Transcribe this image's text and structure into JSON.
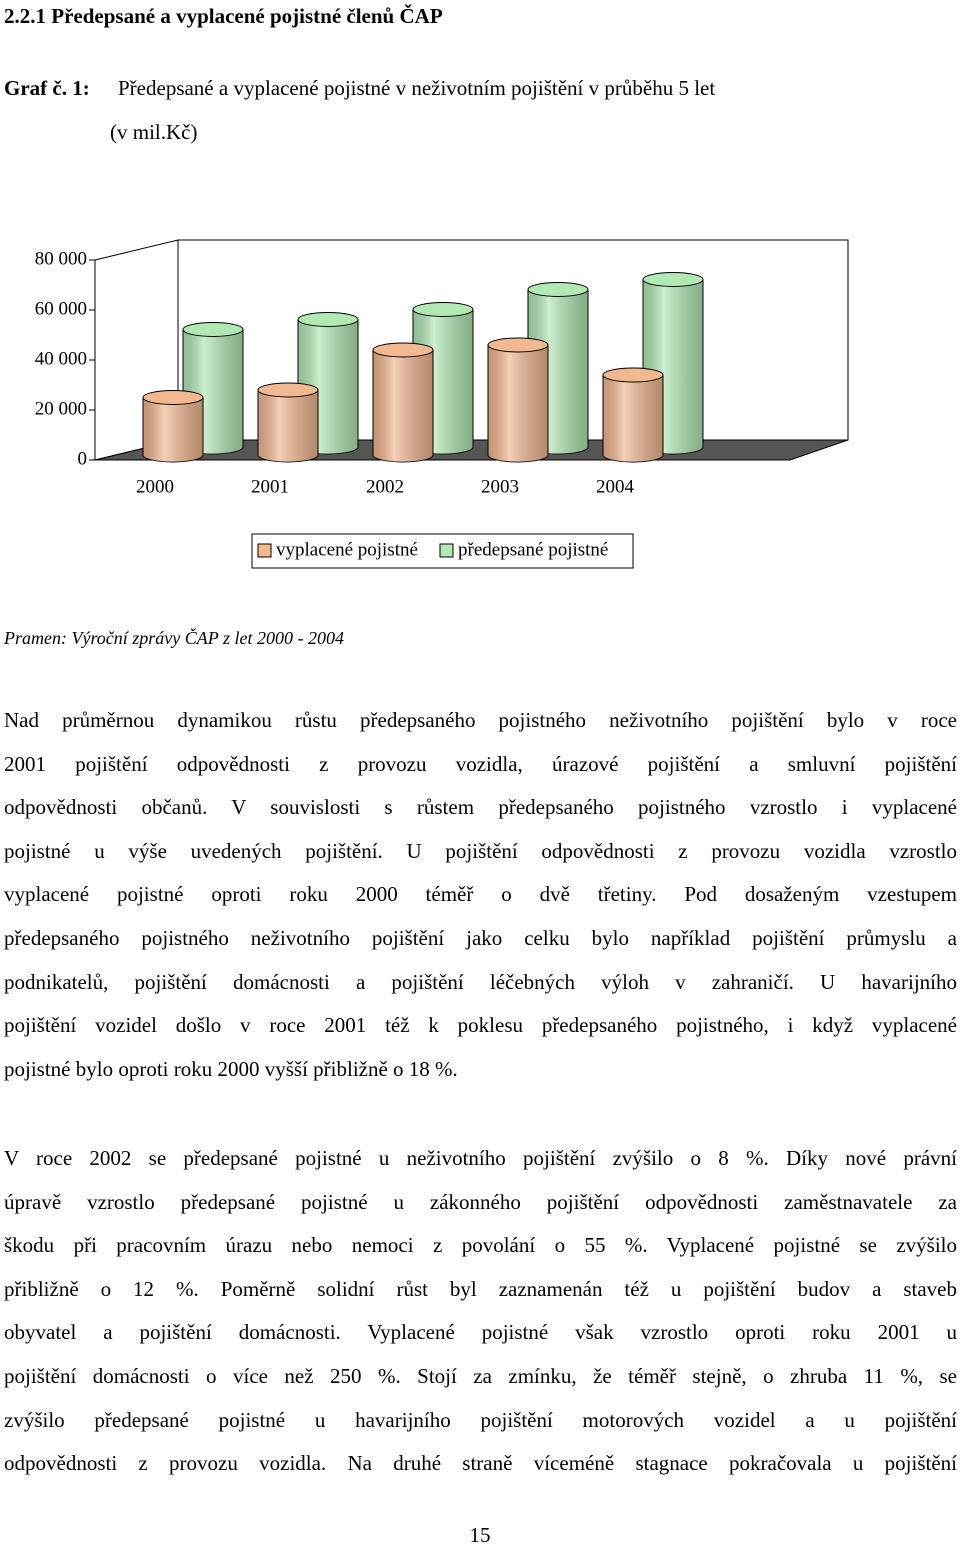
{
  "heading": "2.2.1 Předepsané a vyplacené pojistné členů ČAP",
  "caption": {
    "label": "Graf č. 1:",
    "text": "Předepsané a vyplacené pojistné v neživotním pojištění v průběhu 5 let",
    "unit": "(v mil.Kč)"
  },
  "chart_data": {
    "type": "bar3d",
    "categories": [
      "2000",
      "2001",
      "2002",
      "2003",
      "2004"
    ],
    "series": [
      {
        "name": "vyplacené pojistné",
        "color": "#f2b88f",
        "values": [
          23000,
          26000,
          42000,
          44000,
          32000
        ]
      },
      {
        "name": "předepsané pojistné",
        "color": "#b2e8b4",
        "values": [
          47000,
          51000,
          55000,
          63000,
          67000
        ]
      }
    ],
    "ylim": [
      0,
      80000
    ],
    "yticks": [
      0,
      {
        "value": 20000,
        "label": "20 000"
      },
      {
        "value": 40000,
        "label": "40 000"
      },
      {
        "value": 60000,
        "label": "60 000"
      },
      {
        "value": 80000,
        "label": "80 000"
      }
    ],
    "grid": false,
    "legend": "bottom"
  },
  "source": "Pramen: Výroční zprávy ČAP z let 2000 - 2004",
  "paragraphs": [
    {
      "lines": [
        "Nad průměrnou dynamikou růstu předepsaného pojistného neživotního pojištění bylo v roce",
        "2001 pojištění odpovědnosti z provozu vozidla, úrazové pojištění a smluvní pojištění",
        "odpovědnosti občanů. V souvislosti s růstem předepsaného pojistného vzrostlo i vyplacené",
        "pojistné u výše uvedených pojištění. U pojištění odpovědnosti z provozu vozidla vzrostlo",
        "vyplacené pojistné oproti roku 2000 téměř o dvě třetiny. Pod dosaženým vzestupem",
        "předepsaného pojistného neživotního pojištění jako celku bylo například pojištění průmyslu a",
        "podnikatelů, pojištění domácnosti a pojištění léčebných výloh v zahraničí. U havarijního",
        "pojištění vozidel došlo v roce 2001 též k poklesu předepsaného pojistného, i když vyplacené",
        "pojistné  bylo oproti roku 2000 vyšší přibližně o 18 %."
      ]
    },
    {
      "lines": [
        "V roce 2002 se předepsané pojistné u neživotního pojištění zvýšilo o 8 %. Díky nové právní",
        "úpravě vzrostlo předepsané pojistné u zákonného pojištění odpovědnosti zaměstnavatele za",
        "škodu při pracovním úrazu nebo nemoci z povolání o 55 %. Vyplacené pojistné se zvýšilo",
        "přibližně o 12 %. Poměrně solidní růst byl zaznamenán též u pojištění budov a staveb",
        "obyvatel a pojištění domácnosti. Vyplacené pojistné však vzrostlo oproti roku 2001 u",
        "pojištění domácnosti o více než 250 %. Stojí za zmínku, že téměř stejně, o zhruba 11 %, se",
        "zvýšilo předepsané pojistné u havarijního pojištění motorových vozidel a u pojištění",
        "odpovědnosti z provozu vozidla. Na druhé straně víceméně stagnace pokračovala u pojištění"
      ]
    }
  ],
  "page_number": "15"
}
